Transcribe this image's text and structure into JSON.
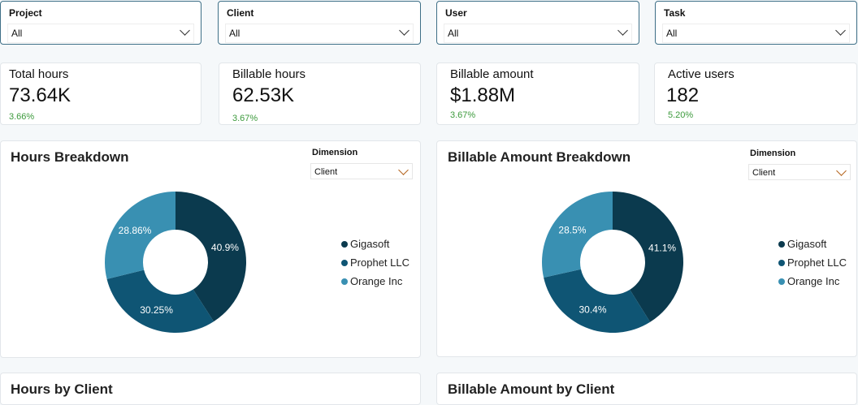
{
  "filters": [
    {
      "label": "Project",
      "value": "All"
    },
    {
      "label": "Client",
      "value": "All"
    },
    {
      "label": "User",
      "value": "All"
    },
    {
      "label": "Task",
      "value": "All"
    }
  ],
  "kpis": [
    {
      "title": "Total hours",
      "value": "73.64K",
      "change": "3.66%"
    },
    {
      "title": "Billable hours",
      "value": "62.53K",
      "change": "3.67%"
    },
    {
      "title": "Billable amount",
      "value": "$1.88M",
      "change": "3.67%"
    },
    {
      "title": "Active users",
      "value": "182",
      "change": "5.20%"
    }
  ],
  "colors": {
    "Gigasoft": "#0b3a4e",
    "Prophet LLC": "#0f5574",
    "Orange Inc": "#3990b2",
    "positive": "#3c9a3c"
  },
  "chart_data": [
    {
      "type": "pie",
      "title": "Hours Breakdown",
      "dimension_label": "Dimension",
      "dimension_value": "Client",
      "categories": [
        "Gigasoft",
        "Prophet LLC",
        "Orange Inc"
      ],
      "values": [
        40.9,
        30.25,
        28.86
      ],
      "labels": [
        "40.9%",
        "30.25%",
        "28.86%"
      ]
    },
    {
      "type": "pie",
      "title": "Billable Amount Breakdown",
      "dimension_label": "Dimension",
      "dimension_value": "Client",
      "categories": [
        "Gigasoft",
        "Prophet LLC",
        "Orange Inc"
      ],
      "values": [
        41.1,
        30.4,
        28.5
      ],
      "labels": [
        "41.1%",
        "30.4%",
        "28.5%"
      ]
    }
  ],
  "bottom_panels": [
    "Hours by Client",
    "Billable Amount by Client"
  ]
}
